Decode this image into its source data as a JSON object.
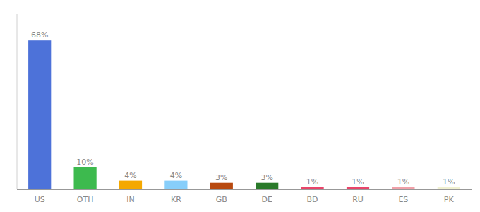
{
  "chart_data": {
    "type": "bar",
    "categories": [
      "US",
      "OTH",
      "IN",
      "KR",
      "GB",
      "DE",
      "BD",
      "RU",
      "ES",
      "PK"
    ],
    "values": [
      68,
      10,
      4,
      4,
      3,
      3,
      1,
      1,
      1,
      1
    ],
    "value_labels": [
      "68%",
      "10%",
      "4%",
      "4%",
      "3%",
      "3%",
      "1%",
      "1%",
      "1%",
      "1%"
    ],
    "colors": [
      "#4d72d9",
      "#3dba4e",
      "#f5a800",
      "#87cefa",
      "#b8490f",
      "#2a7a2a",
      "#e8456a",
      "#e8456a",
      "#f0a0a8",
      "#f0f0d0"
    ],
    "ylim": [
      0,
      80
    ],
    "data_labels": true,
    "tick_labels": "x",
    "grid": false
  }
}
